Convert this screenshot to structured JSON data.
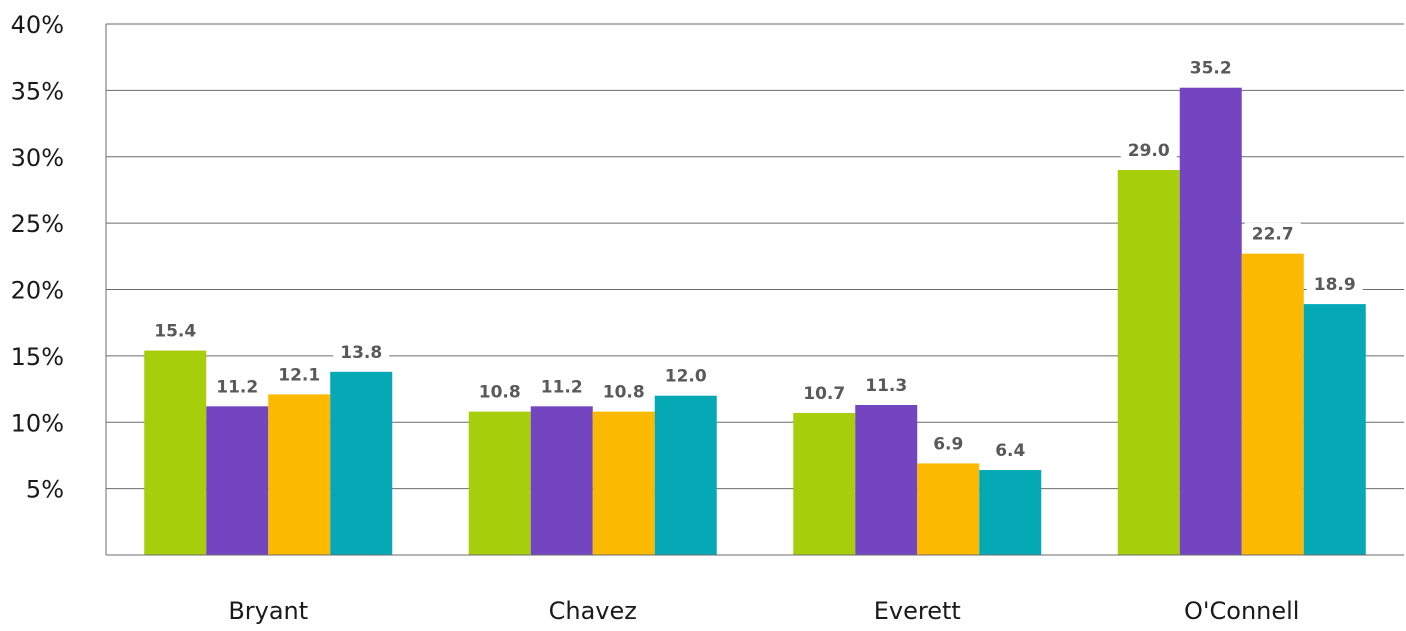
{
  "chart_data": {
    "type": "bar",
    "title": "",
    "xlabel": "",
    "ylabel": "",
    "ylim": [
      0,
      40
    ],
    "yticks": [
      {
        "value": 5,
        "label": "5%"
      },
      {
        "value": 10,
        "label": "10%"
      },
      {
        "value": 15,
        "label": "15%"
      },
      {
        "value": 20,
        "label": "20%"
      },
      {
        "value": 25,
        "label": "25%"
      },
      {
        "value": 30,
        "label": "30%"
      },
      {
        "value": 35,
        "label": "35%"
      },
      {
        "value": 40,
        "label": "40%"
      }
    ],
    "grid": true,
    "legend": "none",
    "categories": [
      "Bryant",
      "Chavez",
      "Everett",
      "O'Connell"
    ],
    "series": [
      {
        "color": "#a6ce0a",
        "values": [
          15.4,
          10.8,
          10.7,
          29.0
        ],
        "labels": [
          "15.4",
          "10.8",
          "10.7",
          "29.0"
        ]
      },
      {
        "color": "#7445c0",
        "values": [
          11.2,
          11.2,
          11.3,
          35.2
        ],
        "labels": [
          "11.2",
          "11.2",
          "11.3",
          "35.2"
        ]
      },
      {
        "color": "#fbb900",
        "values": [
          12.1,
          10.8,
          6.9,
          22.7
        ],
        "labels": [
          "12.1",
          "10.8",
          "6.9",
          "22.7"
        ]
      },
      {
        "color": "#05a8b5",
        "values": [
          13.8,
          12.0,
          6.4,
          18.9
        ],
        "labels": [
          "13.8",
          "12.0",
          "6.4",
          "18.9"
        ]
      }
    ]
  }
}
